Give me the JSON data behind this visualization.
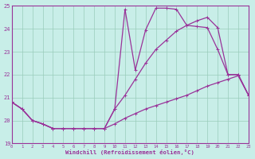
{
  "xlabel": "Windchill (Refroidissement éolien,°C)",
  "bg_color": "#c8eee8",
  "line_color": "#993399",
  "grid_color": "#99ccbb",
  "xlim": [
    0,
    23
  ],
  "ylim": [
    19,
    25
  ],
  "yticks": [
    19,
    20,
    21,
    22,
    23,
    24,
    25
  ],
  "xticks": [
    0,
    1,
    2,
    3,
    4,
    5,
    6,
    7,
    8,
    9,
    10,
    11,
    12,
    13,
    14,
    15,
    16,
    17,
    18,
    19,
    20,
    21,
    22,
    23
  ],
  "curve1_x": [
    0,
    1,
    2,
    3,
    4,
    5,
    6,
    7,
    8,
    9,
    10,
    11,
    12,
    13,
    14,
    15,
    16,
    17,
    18,
    19,
    20,
    21,
    22,
    23
  ],
  "curve1_y": [
    20.8,
    20.5,
    20.0,
    19.85,
    19.65,
    19.65,
    19.65,
    19.65,
    19.65,
    19.65,
    19.85,
    20.1,
    20.3,
    20.5,
    20.65,
    20.8,
    20.95,
    21.1,
    21.3,
    21.5,
    21.65,
    21.8,
    21.95,
    21.1
  ],
  "curve2_x": [
    0,
    1,
    2,
    3,
    4,
    5,
    6,
    7,
    8,
    9,
    10,
    11,
    12,
    13,
    14,
    15,
    16,
    17,
    18,
    19,
    20,
    21,
    22,
    23
  ],
  "curve2_y": [
    20.8,
    20.5,
    20.0,
    19.85,
    19.65,
    19.65,
    19.65,
    19.65,
    19.65,
    19.65,
    20.5,
    24.85,
    22.2,
    23.95,
    24.9,
    24.9,
    24.85,
    24.15,
    24.1,
    24.05,
    23.1,
    22.0,
    22.0,
    21.1
  ],
  "curve3_x": [
    0,
    1,
    2,
    3,
    4,
    5,
    6,
    7,
    8,
    9,
    10,
    11,
    12,
    13,
    14,
    15,
    16,
    17,
    18,
    19,
    20,
    21,
    22,
    23
  ],
  "curve3_y": [
    20.8,
    20.5,
    20.0,
    19.85,
    19.65,
    19.65,
    19.65,
    19.65,
    19.65,
    19.65,
    20.5,
    21.1,
    21.8,
    22.5,
    23.1,
    23.5,
    23.9,
    24.15,
    24.35,
    24.5,
    24.05,
    22.0,
    22.0,
    21.1
  ]
}
